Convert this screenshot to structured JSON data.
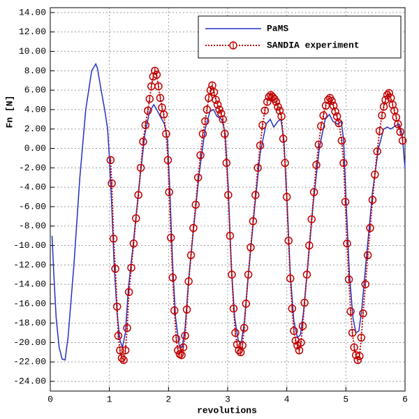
{
  "chart_data": {
    "type": "line",
    "xlabel": "revolutions",
    "ylabel": "Fn [N]",
    "xlim": [
      0,
      6
    ],
    "ylim": [
      -25,
      14.5
    ],
    "xticks": [
      0,
      1,
      2,
      3,
      4,
      5,
      6
    ],
    "yticks": [
      {
        "value": -24,
        "label": "-24.00"
      },
      {
        "value": -22,
        "label": "-22.00"
      },
      {
        "value": -20,
        "label": "-20.00"
      },
      {
        "value": -18,
        "label": "-18.00"
      },
      {
        "value": -16,
        "label": "-16.00"
      },
      {
        "value": -14,
        "label": "-14.00"
      },
      {
        "value": -12,
        "label": "-12.00"
      },
      {
        "value": -10,
        "label": "-10.00"
      },
      {
        "value": -8,
        "label": "-8.00"
      },
      {
        "value": -6,
        "label": "-6.00"
      },
      {
        "value": -4,
        "label": "-4.00"
      },
      {
        "value": -2,
        "label": "-2.00"
      },
      {
        "value": 0,
        "label": "0.00"
      },
      {
        "value": 2,
        "label": "2.00"
      },
      {
        "value": 4,
        "label": "4.00"
      },
      {
        "value": 6,
        "label": "6.00"
      },
      {
        "value": 8,
        "label": "8.00"
      },
      {
        "value": 10,
        "label": "10.00"
      },
      {
        "value": 12,
        "label": "12.00"
      },
      {
        "value": 14,
        "label": "14.00"
      }
    ],
    "grid": true,
    "legend": "upper right",
    "series": [
      {
        "name": "PaMS",
        "color": "#2030c0",
        "markers": false,
        "dashed": false,
        "x": [
          0.03,
          0.06,
          0.1,
          0.15,
          0.2,
          0.25,
          0.3,
          0.4,
          0.5,
          0.6,
          0.7,
          0.77,
          0.8,
          0.86,
          0.92,
          0.97,
          1.0,
          1.04,
          1.08,
          1.13,
          1.18,
          1.22,
          1.27,
          1.32,
          1.4,
          1.5,
          1.6,
          1.68,
          1.75,
          1.8,
          1.86,
          1.93,
          1.98,
          2.02,
          2.07,
          2.12,
          2.18,
          2.23,
          2.28,
          2.34,
          2.42,
          2.52,
          2.62,
          2.7,
          2.76,
          2.82,
          2.9,
          2.96,
          3.01,
          3.06,
          3.12,
          3.18,
          3.23,
          3.28,
          3.35,
          3.45,
          3.55,
          3.65,
          3.72,
          3.78,
          3.85,
          3.9,
          3.95,
          4.0,
          4.06,
          4.12,
          4.18,
          4.23,
          4.28,
          4.35,
          4.45,
          4.55,
          4.65,
          4.72,
          4.78,
          4.86,
          4.92,
          4.96,
          5.0,
          5.06,
          5.12,
          5.17,
          5.22,
          5.27,
          5.35,
          5.45,
          5.55,
          5.64,
          5.7,
          5.76,
          5.83,
          5.9,
          5.95,
          6.0
        ],
        "values": [
          -9,
          -13,
          -17.5,
          -20.5,
          -21.7,
          -21.8,
          -19.5,
          -12,
          -3,
          4,
          8,
          8.7,
          8.2,
          6,
          4,
          2,
          -1,
          -6,
          -12,
          -17,
          -19.8,
          -20.5,
          -19,
          -14.5,
          -10,
          -4,
          1.5,
          3.8,
          4.5,
          4,
          3.3,
          2.5,
          1,
          -4,
          -12,
          -17.5,
          -20.3,
          -20.5,
          -18.5,
          -13.5,
          -8.5,
          -2.5,
          2,
          3.8,
          4,
          3.3,
          3,
          1.5,
          -4,
          -12,
          -17.5,
          -19.8,
          -20,
          -18,
          -13,
          -6.5,
          -0.5,
          2.5,
          3,
          2.2,
          2.8,
          3,
          1,
          -5,
          -13,
          -17.8,
          -19.5,
          -19.2,
          -17,
          -12.5,
          -5.5,
          0,
          3,
          3.5,
          2.8,
          2.5,
          2.8,
          1,
          -5,
          -13,
          -17.5,
          -19,
          -18.8,
          -16.5,
          -11,
          -4.5,
          0,
          2,
          2.2,
          2,
          2.3,
          2.5,
          1.5,
          -2
        ]
      },
      {
        "name": "SANDIA experiment",
        "color": "#c00000",
        "markers": true,
        "dashed": true,
        "x": [
          1.02,
          1.04,
          1.07,
          1.1,
          1.13,
          1.15,
          1.18,
          1.21,
          1.24,
          1.27,
          1.3,
          1.33,
          1.37,
          1.41,
          1.45,
          1.49,
          1.53,
          1.57,
          1.61,
          1.65,
          1.68,
          1.71,
          1.74,
          1.77,
          1.8,
          1.83,
          1.86,
          1.89,
          1.92,
          1.96,
          1.99,
          2.01,
          2.04,
          2.07,
          2.1,
          2.13,
          2.16,
          2.19,
          2.22,
          2.25,
          2.28,
          2.31,
          2.34,
          2.38,
          2.42,
          2.46,
          2.5,
          2.54,
          2.58,
          2.62,
          2.65,
          2.68,
          2.71,
          2.74,
          2.77,
          2.8,
          2.83,
          2.86,
          2.89,
          2.92,
          2.95,
          2.98,
          3.01,
          3.04,
          3.07,
          3.1,
          3.13,
          3.16,
          3.19,
          3.22,
          3.25,
          3.28,
          3.31,
          3.35,
          3.39,
          3.43,
          3.47,
          3.51,
          3.55,
          3.59,
          3.63,
          3.67,
          3.7,
          3.73,
          3.76,
          3.79,
          3.82,
          3.85,
          3.88,
          3.91,
          3.94,
          3.97,
          4.0,
          4.03,
          4.06,
          4.09,
          4.12,
          4.15,
          4.18,
          4.21,
          4.24,
          4.27,
          4.3,
          4.34,
          4.38,
          4.42,
          4.46,
          4.5,
          4.54,
          4.58,
          4.62,
          4.66,
          4.7,
          4.73,
          4.76,
          4.79,
          4.82,
          4.85,
          4.88,
          4.93,
          4.96,
          4.99,
          5.02,
          5.05,
          5.08,
          5.11,
          5.14,
          5.17,
          5.2,
          5.23,
          5.26,
          5.29,
          5.33,
          5.37,
          5.41,
          5.45,
          5.49,
          5.53,
          5.57,
          5.61,
          5.64,
          5.67,
          5.7,
          5.73,
          5.76,
          5.79,
          5.82,
          5.85,
          5.88,
          5.92,
          5.96
        ],
        "values": [
          -1.2,
          -3.6,
          -9.3,
          -12.4,
          -16.3,
          -19.3,
          -20.8,
          -21.6,
          -21.8,
          -20.8,
          -18.5,
          -14.8,
          -12.3,
          -9.8,
          -7.2,
          -4.8,
          -2,
          0.7,
          2.4,
          3.9,
          5.1,
          6.4,
          7.4,
          8.0,
          7.6,
          6.4,
          5.2,
          4.2,
          3.5,
          1.5,
          -1.2,
          -4.5,
          -9.2,
          -13.3,
          -16.7,
          -19.6,
          -20.8,
          -21.2,
          -21.3,
          -20.5,
          -19.3,
          -16.6,
          -13.7,
          -11,
          -8.2,
          -5.8,
          -3,
          -0.7,
          1.5,
          2.8,
          4,
          5.2,
          6,
          6.5,
          5.8,
          5,
          4.5,
          4,
          3.6,
          3,
          1.5,
          -1.5,
          -4.8,
          -9,
          -13,
          -16.5,
          -19,
          -20.2,
          -20.8,
          -21,
          -20.3,
          -18.5,
          -16,
          -13,
          -10.2,
          -7.5,
          -4.8,
          -2,
          0.3,
          2.4,
          3.9,
          4.8,
          5.3,
          5.5,
          5.3,
          5.1,
          4.8,
          4.3,
          3.9,
          3.3,
          1,
          -1.5,
          -5,
          -9.5,
          -13.4,
          -16.5,
          -18.8,
          -19.8,
          -20.3,
          -20.8,
          -20,
          -18.3,
          -15.9,
          -13,
          -10,
          -7.3,
          -4.5,
          -1.7,
          0.4,
          2.3,
          3.4,
          4.4,
          5,
          5.2,
          4.9,
          4.4,
          3.8,
          3.3,
          2.6,
          0.8,
          -1.5,
          -5.5,
          -9.8,
          -13.5,
          -16.8,
          -19,
          -20.5,
          -21.3,
          -21.8,
          -21.4,
          -19.5,
          -17,
          -14,
          -11,
          -8.2,
          -5.3,
          -2.7,
          -0.3,
          1.8,
          3.4,
          4.3,
          5,
          5.5,
          5.7,
          5.2,
          4.5,
          3.9,
          3.2,
          2.5,
          1.7,
          0.8
        ]
      }
    ]
  }
}
